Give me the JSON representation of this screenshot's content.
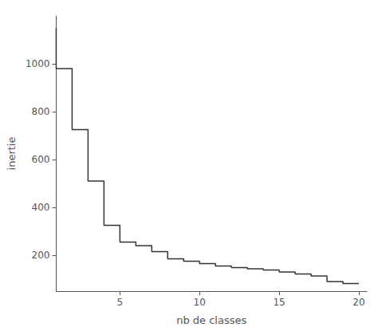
{
  "chart_data": {
    "type": "step",
    "xlabel": "nb de classes",
    "ylabel": "inertie",
    "x": [
      1,
      2,
      3,
      4,
      5,
      6,
      7,
      8,
      9,
      10,
      11,
      12,
      13,
      14,
      15,
      16,
      17,
      18,
      19,
      20
    ],
    "values": [
      1150,
      980,
      725,
      510,
      325,
      255,
      240,
      215,
      185,
      175,
      165,
      155,
      148,
      143,
      138,
      130,
      122,
      113,
      90,
      82
    ],
    "color": "#333333",
    "xlim": [
      1,
      20.5
    ],
    "ylim": [
      50,
      1200
    ],
    "xticks": [
      5,
      10,
      15,
      20
    ],
    "yticks": [
      200,
      400,
      600,
      800,
      1000
    ],
    "grid": false
  }
}
